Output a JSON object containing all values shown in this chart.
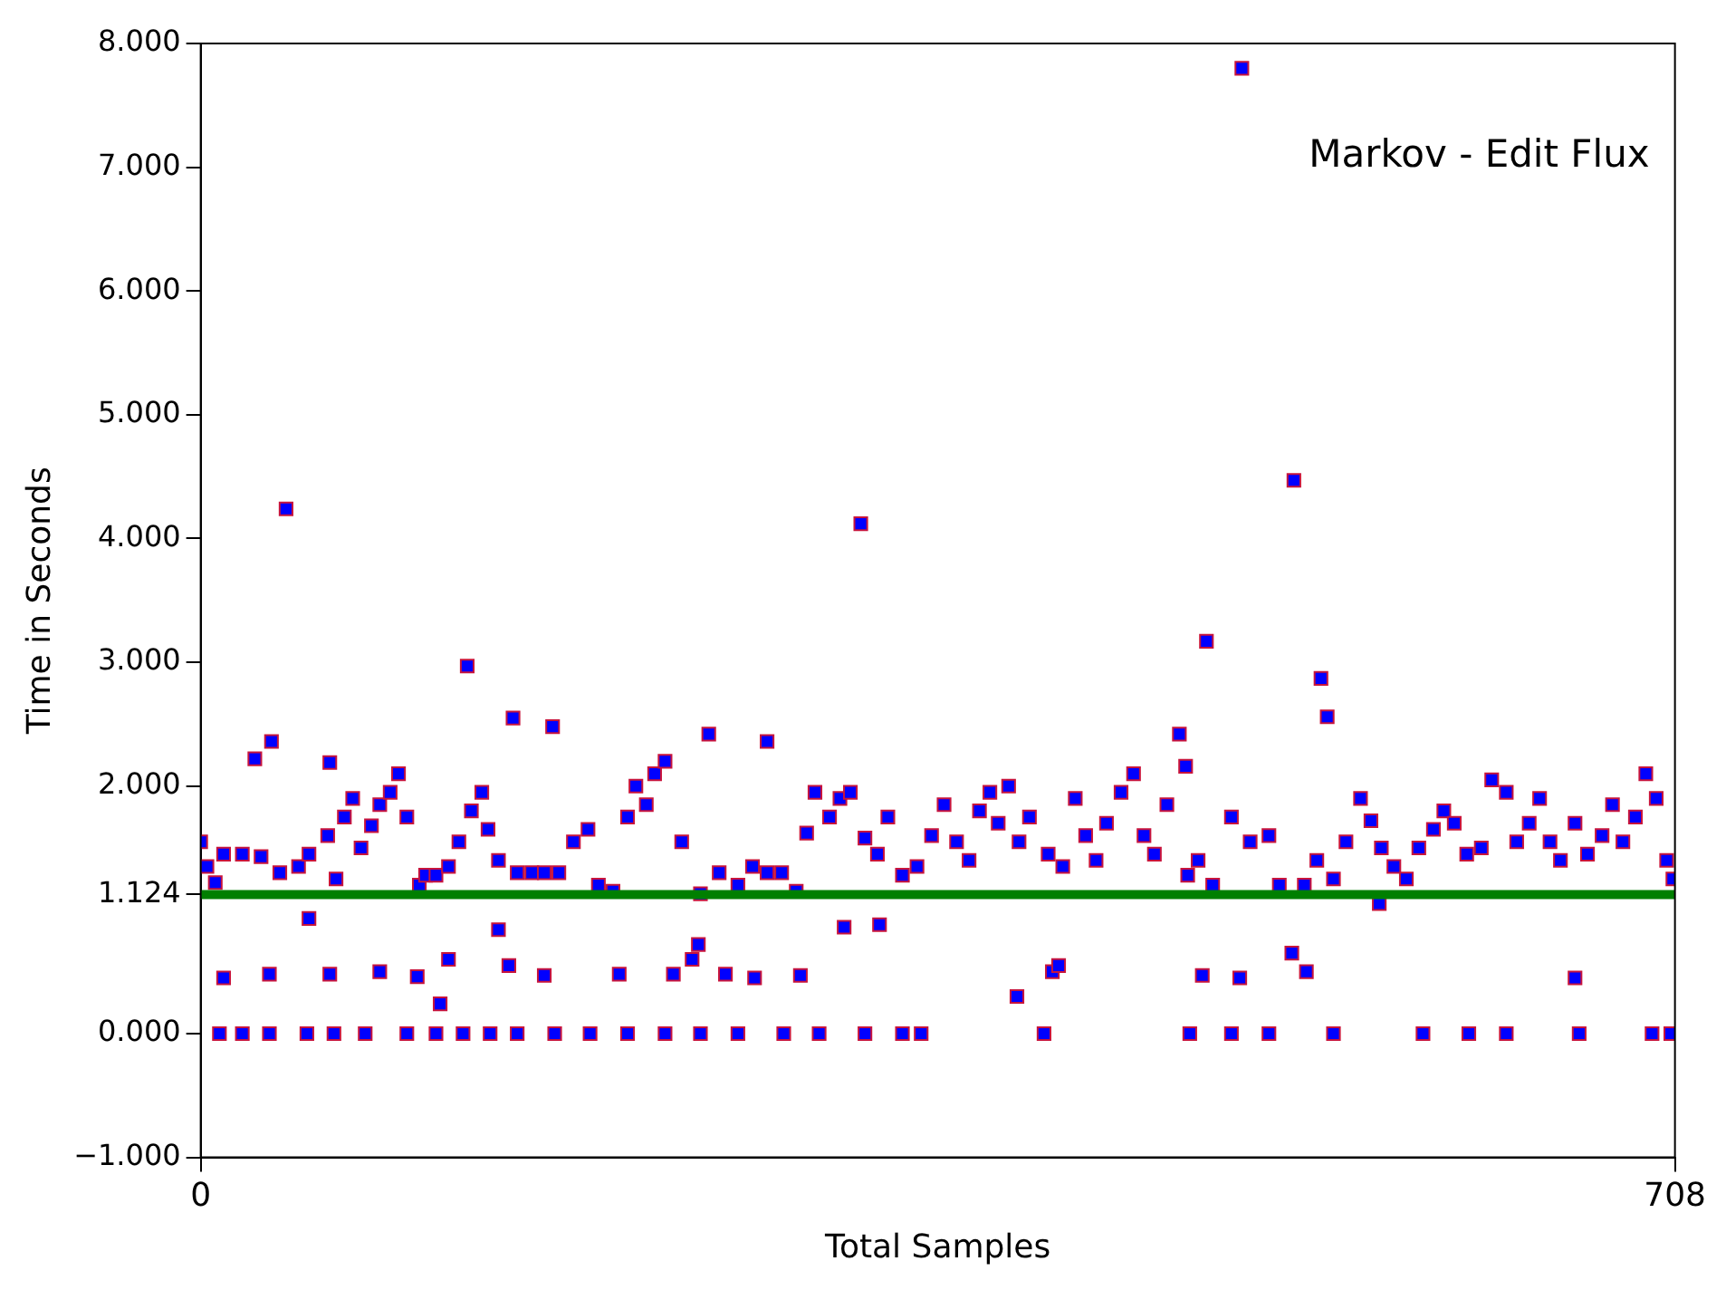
{
  "chart_data": {
    "type": "scatter",
    "xlabel": "Total Samples",
    "ylabel": "Time in Seconds",
    "annotations": [
      "Markov - Edit Flux"
    ],
    "xlim": [
      0,
      708
    ],
    "xticks": [
      0,
      708
    ],
    "ylim": [
      -1,
      8
    ],
    "yticks": [
      {
        "value": -1,
        "label": "−1.000"
      },
      {
        "value": 0,
        "label": "0.000"
      },
      {
        "value": 1.124,
        "label": "1.124"
      },
      {
        "value": 2,
        "label": "2.000"
      },
      {
        "value": 3,
        "label": "3.000"
      },
      {
        "value": 4,
        "label": "4.000"
      },
      {
        "value": 5,
        "label": "5.000"
      },
      {
        "value": 6,
        "label": "6.000"
      },
      {
        "value": 7,
        "label": "7.000"
      },
      {
        "value": 8,
        "label": "8.000"
      }
    ],
    "grid": false,
    "legend": false,
    "marker": "square",
    "ref_lines": [
      {
        "axis": "y",
        "value": 1.124,
        "color": "#007f00"
      }
    ],
    "series": [
      {
        "color": "#0000ff",
        "x": [
          0,
          3,
          7,
          11,
          20,
          29,
          38,
          47,
          52,
          61,
          65,
          69,
          73,
          77,
          82,
          86,
          91,
          95,
          99,
          105,
          108,
          113,
          119,
          124,
          130,
          135,
          138,
          143,
          152,
          159,
          165,
          172,
          179,
          186,
          191,
          198,
          205,
          209,
          214,
          218,
          223,
          231,
          240,
          249,
          258,
          265,
          272,
          279,
          286,
          291,
          295,
          302,
          307,
          312,
          319,
          325,
          330,
          337,
          344,
          351,
          357,
          363,
          369,
          374,
          379,
          383,
          388,
          393,
          398,
          407,
          414,
          420,
          425,
          430,
          435,
          442,
          448,
          453,
          458,
          464,
          474,
          479,
          486,
          495,
          504,
          513,
          518,
          530,
          536,
          544,
          550,
          557,
          562,
          567,
          573,
          579,
          585,
          592,
          597,
          602,
          608,
          615,
          620,
          627,
          632,
          638,
          643,
          648,
          653,
          660,
          666,
          673,
          678,
          683,
          689,
          694,
          699,
          704,
          707,
          9,
          20,
          33,
          51,
          64,
          79,
          99,
          113,
          126,
          139,
          152,
          170,
          187,
          205,
          223,
          240,
          258,
          280,
          297,
          319,
          337,
          346,
          405,
          475,
          495,
          513,
          544,
          587,
          609,
          627,
          662,
          697,
          706,
          11,
          33,
          62,
          86,
          104,
          119,
          148,
          165,
          201,
          227,
          236,
          252,
          266,
          288,
          392,
          409,
          412,
          481,
          499,
          531,
          660,
          52,
          143,
          115,
          309,
          326,
          524,
          239,
          566,
          41,
          317,
          500,
          525,
          483,
          128,
          538,
          541,
          150,
          169,
          244,
          272,
          34,
          26,
          62,
          470,
          473
        ],
        "values": [
          1.55,
          1.35,
          1.22,
          1.45,
          1.45,
          1.43,
          1.3,
          1.35,
          1.45,
          1.6,
          1.25,
          1.75,
          1.9,
          1.5,
          1.68,
          1.85,
          1.95,
          2.1,
          1.75,
          1.2,
          1.28,
          1.28,
          1.35,
          1.55,
          1.8,
          1.95,
          1.65,
          1.4,
          1.3,
          1.3,
          1.3,
          1.3,
          1.55,
          1.65,
          1.2,
          1.15,
          1.75,
          2.0,
          1.85,
          2.1,
          2.2,
          1.55,
          1.13,
          1.3,
          1.2,
          1.35,
          1.3,
          1.3,
          1.15,
          1.62,
          1.95,
          1.75,
          1.9,
          1.95,
          1.58,
          1.45,
          1.75,
          1.28,
          1.35,
          1.6,
          1.85,
          1.55,
          1.4,
          1.8,
          1.95,
          1.7,
          2.0,
          1.55,
          1.75,
          1.45,
          1.35,
          1.9,
          1.6,
          1.4,
          1.7,
          1.95,
          2.1,
          1.6,
          1.45,
          1.85,
          1.28,
          1.4,
          1.2,
          1.75,
          1.55,
          1.6,
          1.2,
          1.2,
          1.4,
          1.25,
          1.55,
          1.9,
          1.72,
          1.5,
          1.35,
          1.25,
          1.5,
          1.65,
          1.8,
          1.7,
          1.45,
          1.5,
          2.05,
          1.95,
          1.55,
          1.7,
          1.9,
          1.55,
          1.4,
          1.7,
          1.45,
          1.6,
          1.85,
          1.55,
          1.75,
          2.1,
          1.9,
          1.4,
          1.25,
          0,
          0,
          0,
          0,
          0,
          0,
          0,
          0,
          0,
          0,
          0,
          0,
          0,
          0,
          0,
          0,
          0,
          0,
          0,
          0,
          0,
          0,
          0,
          0,
          0,
          0,
          0,
          0,
          0,
          0,
          0,
          0,
          0,
          0.45,
          0.48,
          0.48,
          0.5,
          0.46,
          0.6,
          0.55,
          0.47,
          0.48,
          0.48,
          0.6,
          0.48,
          0.45,
          0.47,
          0.3,
          0.5,
          0.55,
          0.47,
          0.45,
          0.5,
          0.45,
          0.93,
          0.84,
          0.24,
          0.86,
          0.88,
          0.65,
          0.72,
          1.05,
          4.24,
          4.12,
          7.8,
          4.47,
          3.17,
          2.97,
          2.87,
          2.56,
          2.55,
          2.48,
          2.42,
          2.36,
          2.36,
          2.22,
          2.19,
          2.42,
          2.16
        ]
      }
    ]
  }
}
